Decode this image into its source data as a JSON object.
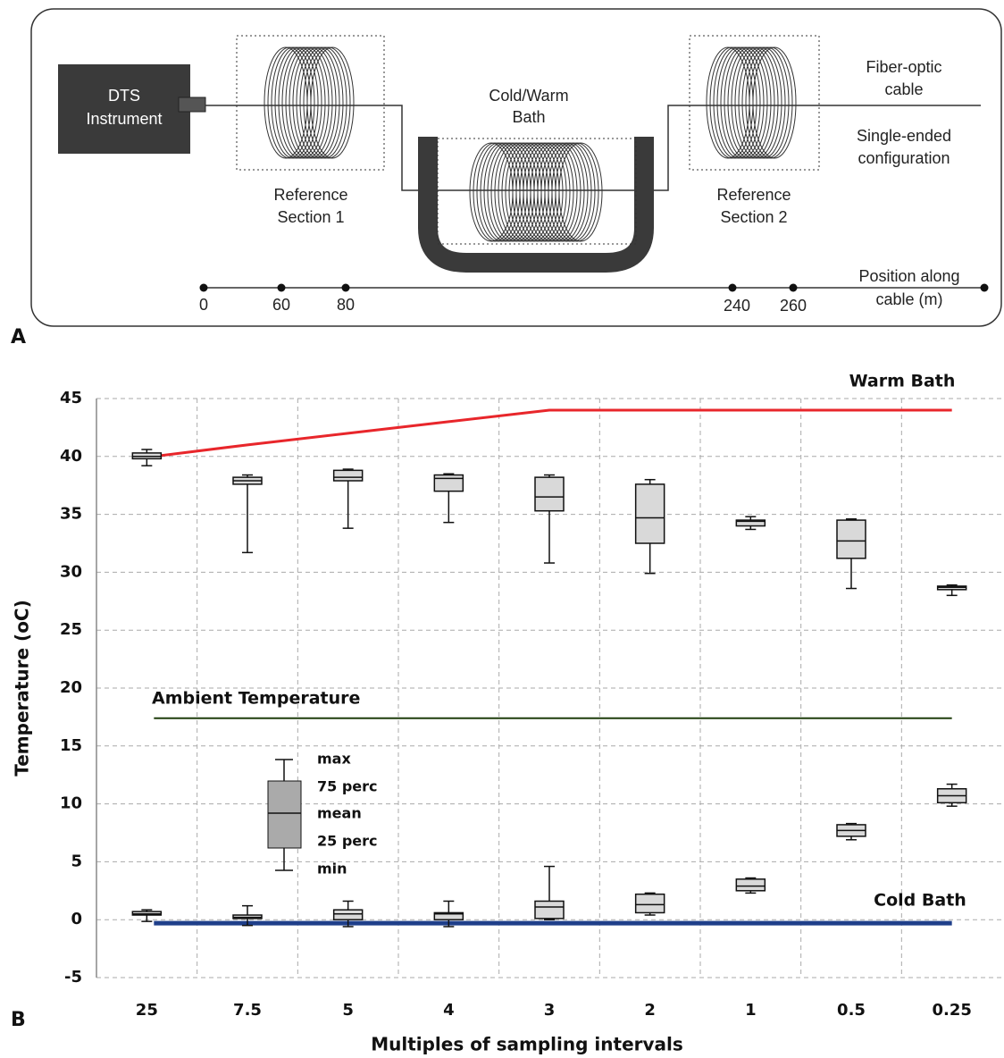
{
  "diagram": {
    "instrument": [
      "DTS",
      "Instrument"
    ],
    "bath": [
      "Cold/Warm",
      "Bath"
    ],
    "reference_1": [
      "Reference",
      "Section 1"
    ],
    "reference_2": [
      "Reference",
      "Section 2"
    ],
    "cable": [
      "Fiber-optic",
      "cable"
    ],
    "configuration": [
      "Single-ended",
      "configuration"
    ],
    "position_title": [
      "Position along",
      "cable (m)"
    ],
    "positions": [
      0,
      60,
      80,
      240,
      260
    ],
    "panel": "A"
  },
  "chart_data": {
    "type": "box",
    "panel": "B",
    "x_label": "Multiples of sampling intervals",
    "y_label": "Temperature (oC)",
    "categories": [
      "25",
      "7.5",
      "5",
      "4",
      "3",
      "2",
      "1",
      "0.5",
      "0.25"
    ],
    "ylim": [
      -5,
      45
    ],
    "yticks": [
      -5,
      0,
      5,
      10,
      15,
      20,
      25,
      30,
      35,
      40,
      45
    ],
    "grid": true,
    "box_color": "#d9d9d9",
    "boxes": [
      {
        "min": [
          39.2,
          31.7,
          33.8,
          34.3,
          30.8,
          29.9,
          33.7,
          28.6,
          28.0
        ],
        "q1": [
          39.8,
          37.6,
          37.9,
          37.0,
          35.3,
          32.5,
          34.0,
          31.2,
          28.5
        ],
        "median": [
          40.0,
          37.9,
          38.2,
          38.1,
          36.5,
          34.7,
          34.4,
          32.7,
          28.7
        ],
        "q3": [
          40.3,
          38.2,
          38.8,
          38.4,
          38.2,
          37.6,
          34.5,
          34.5,
          28.8
        ],
        "max": [
          40.6,
          38.4,
          38.9,
          38.5,
          38.4,
          38.0,
          34.8,
          34.6,
          28.9
        ]
      },
      {
        "min": [
          -0.15,
          -0.5,
          -0.6,
          -0.6,
          0.0,
          0.4,
          2.3,
          6.9,
          9.8
        ],
        "q1": [
          0.4,
          0.1,
          0.0,
          0.0,
          0.1,
          0.6,
          2.5,
          7.2,
          10.1
        ],
        "median": [
          0.5,
          0.2,
          0.5,
          0.5,
          1.1,
          1.3,
          2.9,
          7.7,
          10.7
        ],
        "q3": [
          0.7,
          0.4,
          0.85,
          0.6,
          1.6,
          2.2,
          3.5,
          8.2,
          11.3
        ],
        "max": [
          0.85,
          1.2,
          1.6,
          1.6,
          4.6,
          2.3,
          3.6,
          8.3,
          11.7
        ]
      }
    ],
    "lines": [
      {
        "name": "Warm Bath",
        "color": "#e8262b",
        "values": [
          40,
          41,
          42,
          43,
          44,
          44,
          44,
          44,
          44
        ]
      },
      {
        "name": "Ambient Temperature",
        "color": "#1f3d0c",
        "values": [
          17.4,
          17.4,
          17.4,
          17.4,
          17.4,
          17.4,
          17.4,
          17.4,
          17.4
        ]
      },
      {
        "name": "Cold Bath",
        "color": "#1f3f8a",
        "values": [
          -0.3,
          -0.3,
          -0.3,
          -0.3,
          -0.3,
          -0.3,
          -0.3,
          -0.3,
          -0.3
        ]
      }
    ],
    "box_legend": [
      "max",
      "75 perc",
      "mean",
      "25 perc",
      "min"
    ]
  }
}
